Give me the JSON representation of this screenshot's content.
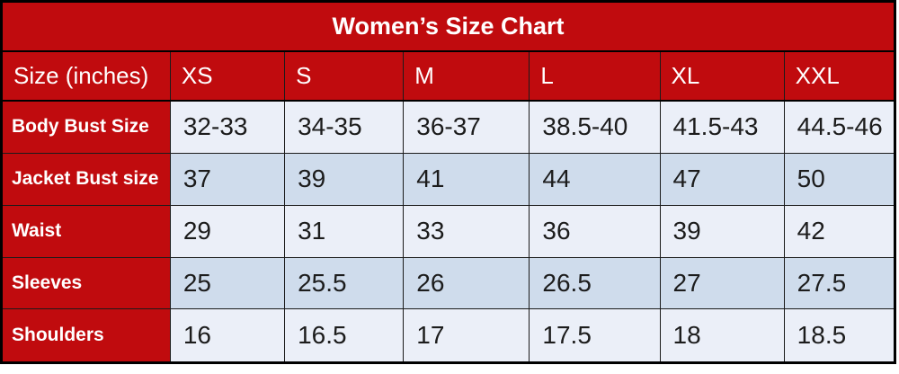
{
  "title": "Women’s Size Chart",
  "colors": {
    "red": "#c00b0e",
    "row_light": "#ebeff8",
    "row_dark": "#cfdcec",
    "border": "#1b1b1b",
    "title_text": "#ffffff",
    "value_text": "#1c1c1c"
  },
  "chart_data": {
    "type": "table",
    "title": "Women’s Size Chart",
    "columns": [
      "Size (inches)",
      "XS",
      "S",
      "M",
      "L",
      "XL",
      "XXL"
    ],
    "rows": [
      {
        "label": "Body Bust Size",
        "values": [
          "32-33",
          "34-35",
          "36-37",
          "38.5-40",
          "41.5-43",
          "44.5-46"
        ]
      },
      {
        "label": "Jacket Bust size",
        "values": [
          "37",
          "39",
          "41",
          "44",
          "47",
          "50"
        ]
      },
      {
        "label": "Waist",
        "values": [
          "29",
          "31",
          "33",
          "36",
          "39",
          "42"
        ]
      },
      {
        "label": "Sleeves",
        "values": [
          "25",
          "25.5",
          "26",
          "26.5",
          "27",
          "27.5"
        ]
      },
      {
        "label": "Shoulders",
        "values": [
          "16",
          "16.5",
          "17",
          "17.5",
          "18",
          "18.5"
        ]
      }
    ]
  }
}
